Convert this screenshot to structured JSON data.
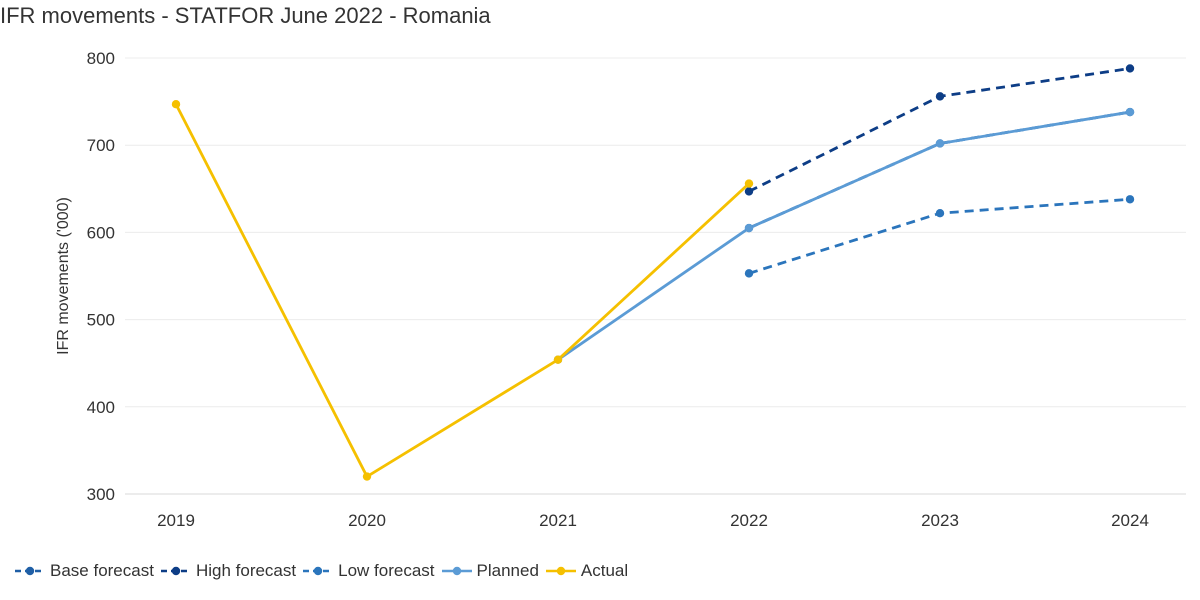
{
  "chart_data": {
    "type": "line",
    "title": "IFR movements - STATFOR June 2022 - Romania",
    "xlabel": "",
    "ylabel": "IFR movements ('000)",
    "categories": [
      "2019",
      "2020",
      "2021",
      "2022",
      "2023",
      "2024"
    ],
    "ylim": [
      300,
      800
    ],
    "yticks": [
      "300",
      "400",
      "500",
      "600",
      "700",
      "800"
    ],
    "grid": true,
    "legend_position": "bottom-left",
    "series": [
      {
        "name": "Base forecast",
        "values": [
          null,
          null,
          null,
          605,
          702,
          738
        ],
        "color": "#1F5FA6",
        "dashed": true
      },
      {
        "name": "High forecast",
        "values": [
          null,
          null,
          null,
          647,
          756,
          788
        ],
        "color": "#0D3D86",
        "dashed": true
      },
      {
        "name": "Low forecast",
        "values": [
          null,
          null,
          null,
          553,
          622,
          638
        ],
        "color": "#2B75BC",
        "dashed": true
      },
      {
        "name": "Planned",
        "values": [
          null,
          null,
          454,
          605,
          702,
          738
        ],
        "color": "#5B9BD5",
        "dashed": false
      },
      {
        "name": "Actual",
        "values": [
          747,
          320,
          454,
          656,
          null,
          null
        ],
        "color": "#F5C000",
        "dashed": false
      }
    ]
  }
}
